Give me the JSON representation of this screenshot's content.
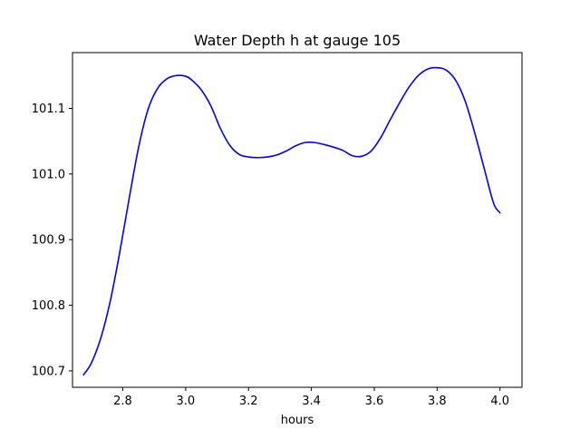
{
  "chart_data": {
    "type": "line",
    "title": "Water Depth h at gauge 105",
    "xlabel": "hours",
    "ylabel": "",
    "xlim": [
      2.64,
      4.07
    ],
    "ylim": [
      100.675,
      101.185
    ],
    "xticks": [
      2.8,
      3.0,
      3.2,
      3.4,
      3.6,
      3.8,
      4.0
    ],
    "xtick_labels": [
      "2.8",
      "3.0",
      "3.2",
      "3.4",
      "3.6",
      "3.8",
      "4.0"
    ],
    "yticks": [
      100.7,
      100.8,
      100.9,
      101.0,
      101.1
    ],
    "ytick_labels": [
      "100.7",
      "100.8",
      "100.9",
      "101.0",
      "101.1"
    ],
    "grid": false,
    "series": [
      {
        "color": "#0000ff",
        "x": [
          2.675,
          2.7,
          2.73,
          2.76,
          2.79,
          2.82,
          2.85,
          2.88,
          2.91,
          2.94,
          2.97,
          3.0,
          3.02,
          3.05,
          3.08,
          3.11,
          3.14,
          3.17,
          3.2,
          3.23,
          3.26,
          3.29,
          3.32,
          3.35,
          3.38,
          3.41,
          3.44,
          3.47,
          3.5,
          3.53,
          3.56,
          3.59,
          3.62,
          3.65,
          3.68,
          3.71,
          3.74,
          3.77,
          3.8,
          3.83,
          3.86,
          3.89,
          3.92,
          3.95,
          3.98,
          4.0
        ],
        "y": [
          100.694,
          100.712,
          100.75,
          100.806,
          100.88,
          100.962,
          101.04,
          101.098,
          101.13,
          101.145,
          101.15,
          101.149,
          101.143,
          101.128,
          101.104,
          101.07,
          101.044,
          101.03,
          101.026,
          101.025,
          101.026,
          101.029,
          101.035,
          101.043,
          101.048,
          101.048,
          101.045,
          101.041,
          101.036,
          101.028,
          101.027,
          101.035,
          101.055,
          101.082,
          101.108,
          101.132,
          101.15,
          101.16,
          101.162,
          101.158,
          101.142,
          101.11,
          101.062,
          101.008,
          100.955,
          100.941
        ]
      }
    ]
  }
}
